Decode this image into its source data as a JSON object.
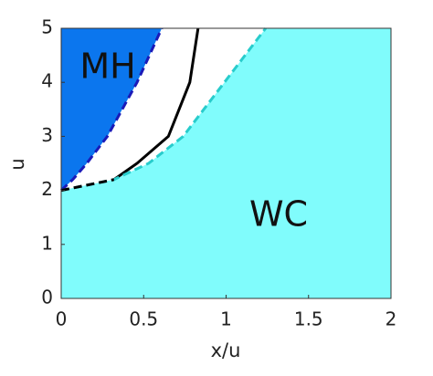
{
  "chart_data": {
    "type": "line",
    "xlabel": "x/u",
    "ylabel": "u",
    "xlim": [
      0,
      2
    ],
    "ylim": [
      0,
      5
    ],
    "xticks": [
      0,
      0.5,
      1,
      1.5,
      2
    ],
    "yticks": [
      0,
      1,
      2,
      3,
      4,
      5
    ],
    "background": "#ffffff",
    "series": [
      {
        "x": [
          0,
          0.07,
          0.155,
          0.28,
          0.46,
          0.61
        ],
        "y": [
          2,
          2.2,
          2.5,
          3,
          4,
          5
        ],
        "color": "#1a1ab8",
        "dashed": true,
        "fill": "#0b76ee",
        "fill_side": "left"
      },
      {
        "x": [
          0.32,
          0.46,
          0.65,
          0.78,
          0.83
        ],
        "y": [
          2.2,
          2.5,
          3,
          4,
          5
        ],
        "color": "#000000",
        "dashed": false
      },
      {
        "x": [
          0,
          0.32,
          0.53,
          0.74,
          0.99,
          1.24
        ],
        "y": [
          2,
          2.2,
          2.5,
          3,
          4,
          5
        ],
        "color": "#28cccc",
        "dashed": true,
        "fill": "#80fcfc",
        "fill_side": "right"
      },
      {
        "x": [
          0,
          0.32
        ],
        "y": [
          2,
          2.2
        ],
        "color": "#000000",
        "dashed": true
      }
    ],
    "annotations": [
      "MH",
      "WC"
    ]
  }
}
